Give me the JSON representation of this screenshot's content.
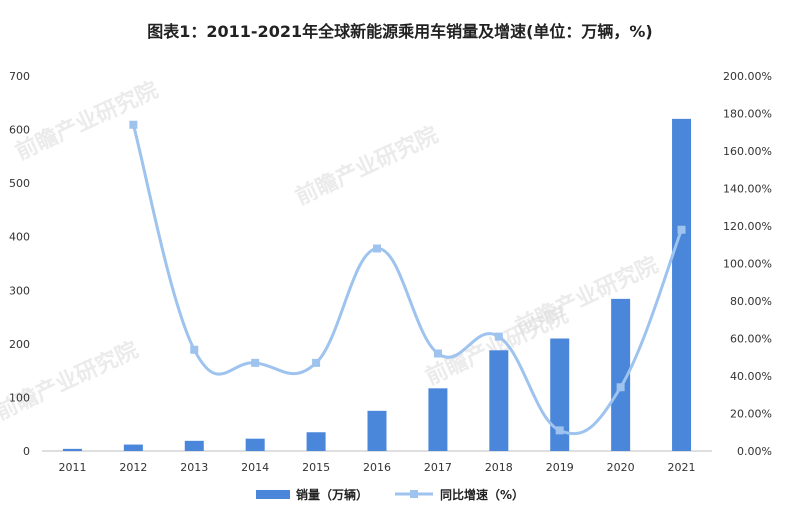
{
  "chart_data": {
    "type": "bar",
    "title": "图表1：2011-2021年全球新能源乘用车销量及增速(单位：万辆，%)",
    "categories": [
      "2011",
      "2012",
      "2013",
      "2014",
      "2015",
      "2016",
      "2017",
      "2018",
      "2019",
      "2020",
      "2021"
    ],
    "series": [
      {
        "name": "销量（万辆）",
        "type": "bar",
        "axis": "left",
        "color": "#4a86d9",
        "values": [
          4,
          12,
          19,
          23,
          35,
          75,
          117,
          188,
          210,
          284,
          620
        ]
      },
      {
        "name": "同比增速（%）",
        "type": "line",
        "axis": "right",
        "color": "#9dc3ee",
        "values": [
          null,
          174,
          54,
          47,
          47,
          108,
          52,
          61,
          11,
          34,
          118
        ]
      }
    ],
    "y_left": {
      "lim": [
        0,
        700
      ],
      "ticks": [
        "0",
        "100",
        "200",
        "300",
        "400",
        "500",
        "600",
        "700"
      ]
    },
    "y_right": {
      "lim": [
        0,
        200
      ],
      "ticks": [
        "0.00%",
        "20.00%",
        "40.00%",
        "60.00%",
        "80.00%",
        "100.00%",
        "120.00%",
        "140.00%",
        "160.00%",
        "180.00%",
        "200.00%"
      ]
    },
    "legend_position": "bottom"
  },
  "watermark_text": "前瞻产业研究院"
}
